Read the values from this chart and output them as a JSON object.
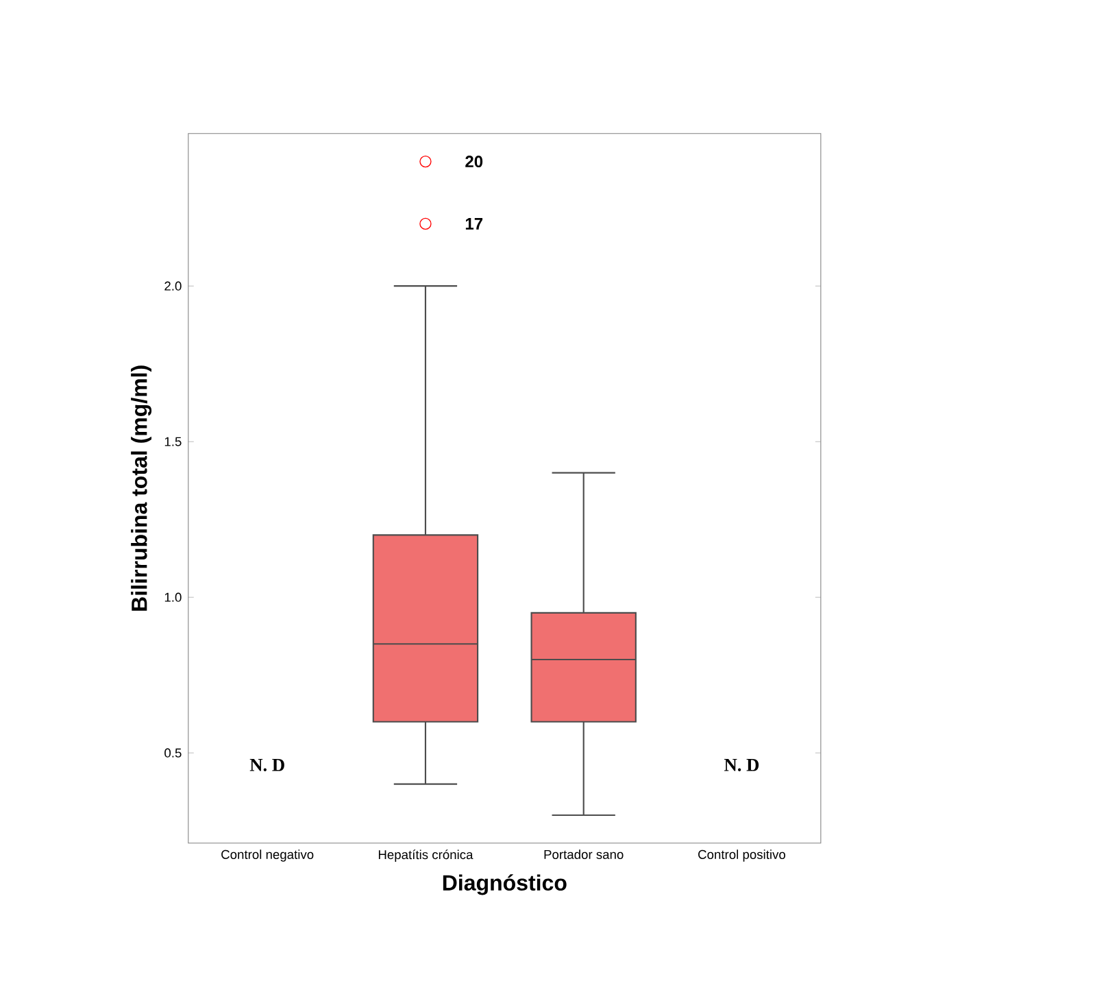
{
  "chart_data": {
    "type": "box",
    "xlabel": "Diagnóstico",
    "ylabel": "Bilirrubina total (mg/ml)",
    "categories": [
      "Control negativo",
      "Hepatítis crónica",
      "Portador sano",
      "Control positivo"
    ],
    "color": "#f07070",
    "boxes": [
      null,
      {
        "low": 0.4,
        "q1": 0.6,
        "median": 0.85,
        "q3": 1.2,
        "high": 2.0,
        "outliers": [
          2.4,
          2.2
        ]
      },
      {
        "low": 0.3,
        "q1": 0.6,
        "median": 0.8,
        "q3": 0.95,
        "high": 1.4
      },
      null
    ],
    "ylim": [
      0.21,
      2.49
    ],
    "yticks": [
      {
        "value": 0.5,
        "label": "0.5"
      },
      {
        "value": 1.0,
        "label": "1.0"
      },
      {
        "value": 1.5,
        "label": "1.5"
      },
      {
        "value": 2.0,
        "label": "2.0"
      }
    ],
    "annotations": [
      "N. D",
      "N. D",
      "20",
      "17"
    ]
  }
}
